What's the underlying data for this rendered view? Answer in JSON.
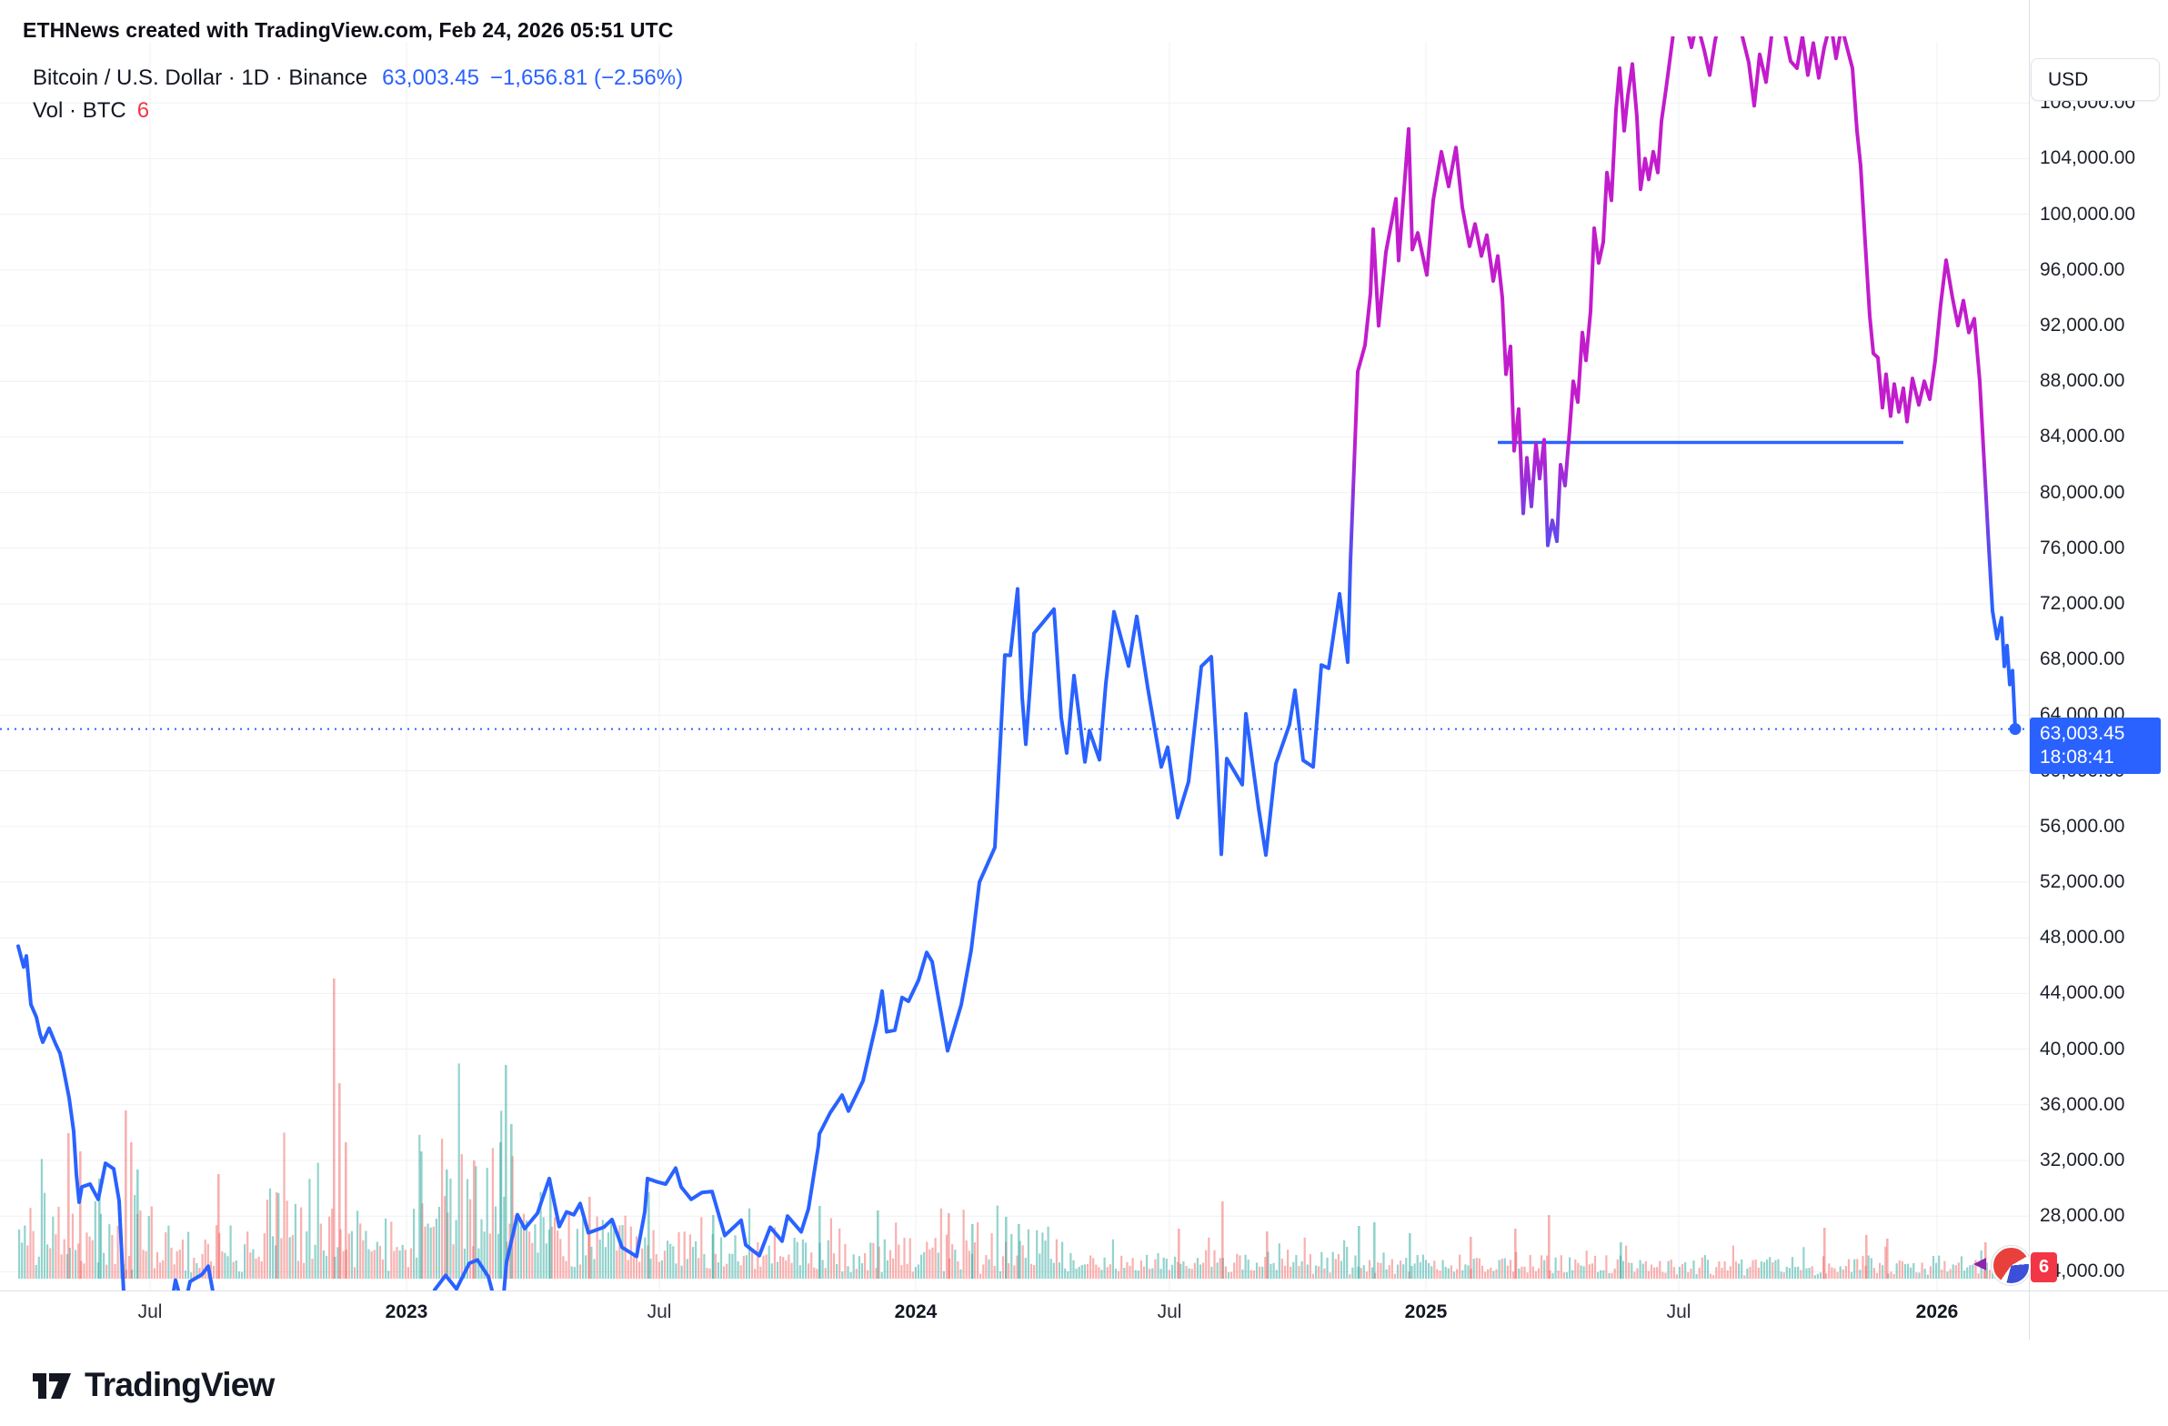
{
  "header": {
    "title": "ETHNews created with TradingView.com, Feb 24, 2026 05:51 UTC"
  },
  "legend": {
    "symbol": "Bitcoin / U.S. Dollar · 1D · Binance",
    "price": "63,003.45",
    "change": "−1,656.81 (−2.56%)",
    "vol_label": "Vol · BTC",
    "vol_value": "6"
  },
  "axis": {
    "currency": "USD"
  },
  "price_marker": {
    "price": "63,003.45",
    "countdown": "18:08:41"
  },
  "volume_marker": {
    "value": "6"
  },
  "footer": {
    "brand": "TradingView"
  },
  "chart_data": {
    "type": "line",
    "symbol": "BTCUSD",
    "interval": "1D",
    "exchange": "Binance",
    "last_price": 63003.45,
    "change": -1656.81,
    "change_pct": -2.56,
    "colors": {
      "low": "#2962FF",
      "high": "#C21CCC",
      "grid": "#f0f1f4",
      "vol_up": "rgba(42,167,155,0.5)",
      "vol_down": "rgba(239,83,80,0.45)",
      "accent": "#2962FF",
      "red": "#F23645"
    },
    "y_axis": {
      "visible_min": 24000,
      "visible_max": 104000,
      "tick_step": 4000
    },
    "price_ticks": [
      {
        "p": 108000,
        "label": "108,000.00"
      },
      {
        "p": 104000,
        "label": "104,000.00"
      },
      {
        "p": 100000,
        "label": "100,000.00"
      },
      {
        "p": 96000,
        "label": "96,000.00"
      },
      {
        "p": 92000,
        "label": "92,000.00"
      },
      {
        "p": 88000,
        "label": "88,000.00"
      },
      {
        "p": 84000,
        "label": "84,000.00"
      },
      {
        "p": 80000,
        "label": "80,000.00"
      },
      {
        "p": 76000,
        "label": "76,000.00"
      },
      {
        "p": 72000,
        "label": "72,000.00"
      },
      {
        "p": 68000,
        "label": "68,000.00"
      },
      {
        "p": 64000,
        "label": "64,000.00"
      },
      {
        "p": 60000,
        "label": "60,000.00"
      },
      {
        "p": 56000,
        "label": "56,000.00"
      },
      {
        "p": 52000,
        "label": "52,000.00"
      },
      {
        "p": 48000,
        "label": "48,000.00"
      },
      {
        "p": 44000,
        "label": "44,000.00"
      },
      {
        "p": 40000,
        "label": "40,000.00"
      },
      {
        "p": 36000,
        "label": "36,000.00"
      },
      {
        "p": 32000,
        "label": "32,000.00"
      },
      {
        "p": 28000,
        "label": "28,000.00"
      },
      {
        "p": 24000,
        "label": "24,000.00"
      }
    ],
    "time_ticks": [
      {
        "x": 165,
        "label": "Jul"
      },
      {
        "x": 447,
        "label": "2023",
        "major": true
      },
      {
        "x": 725,
        "label": "Jul"
      },
      {
        "x": 1007,
        "label": "2024",
        "major": true
      },
      {
        "x": 1286,
        "label": "Jul"
      },
      {
        "x": 1568,
        "label": "2025",
        "major": true
      },
      {
        "x": 1846,
        "label": "Jul"
      },
      {
        "x": 2130,
        "label": "2026",
        "major": true
      }
    ],
    "trendline": {
      "price": 83600,
      "x0": 1647,
      "x1": 2093
    },
    "last_point": {
      "x": 2216,
      "price": 63003.45
    },
    "series": [
      [
        20,
        47400
      ],
      [
        26,
        45900
      ],
      [
        29,
        46700
      ],
      [
        34,
        43200
      ],
      [
        40,
        42300
      ],
      [
        44,
        41100
      ],
      [
        47,
        40500
      ],
      [
        54,
        41500
      ],
      [
        61,
        40400
      ],
      [
        66,
        39700
      ],
      [
        70,
        38500
      ],
      [
        76,
        36500
      ],
      [
        81,
        34100
      ],
      [
        84,
        31000
      ],
      [
        87,
        29000
      ],
      [
        90,
        30100
      ],
      [
        99,
        30300
      ],
      [
        108,
        29200
      ],
      [
        116,
        31800
      ],
      [
        125,
        31400
      ],
      [
        131,
        29100
      ],
      [
        136,
        22500
      ],
      [
        139,
        20400
      ],
      [
        143,
        17700
      ],
      [
        148,
        20700
      ],
      [
        156,
        21250
      ],
      [
        162,
        19900
      ],
      [
        168,
        19300
      ],
      [
        175,
        21600
      ],
      [
        182,
        19300
      ],
      [
        193,
        23400
      ],
      [
        202,
        21250
      ],
      [
        209,
        23300
      ],
      [
        222,
        23800
      ],
      [
        229,
        24400
      ],
      [
        239,
        20800
      ],
      [
        251,
        20000
      ],
      [
        266,
        18800
      ],
      [
        276,
        22400
      ],
      [
        285,
        19500
      ],
      [
        289,
        18500
      ],
      [
        303,
        19400
      ],
      [
        309,
        20300
      ],
      [
        323,
        19100
      ],
      [
        334,
        19050
      ],
      [
        343,
        20700
      ],
      [
        357,
        21150
      ],
      [
        361,
        20600
      ],
      [
        364,
        15900
      ],
      [
        372,
        16600
      ],
      [
        383,
        15780
      ],
      [
        396,
        17150
      ],
      [
        416,
        17780
      ],
      [
        426,
        16440
      ],
      [
        443,
        16600
      ],
      [
        456,
        16950
      ],
      [
        467,
        19930
      ],
      [
        478,
        22700
      ],
      [
        490,
        23740
      ],
      [
        502,
        22760
      ],
      [
        516,
        24600
      ],
      [
        525,
        24850
      ],
      [
        537,
        23650
      ],
      [
        551,
        20200
      ],
      [
        557,
        24700
      ],
      [
        569,
        28100
      ],
      [
        577,
        27100
      ],
      [
        591,
        28200
      ],
      [
        604,
        30700
      ],
      [
        615,
        27250
      ],
      [
        623,
        28300
      ],
      [
        631,
        28100
      ],
      [
        638,
        28900
      ],
      [
        647,
        26800
      ],
      [
        664,
        27200
      ],
      [
        673,
        27750
      ],
      [
        684,
        25750
      ],
      [
        700,
        25100
      ],
      [
        709,
        28300
      ],
      [
        712,
        30700
      ],
      [
        723,
        30450
      ],
      [
        732,
        30300
      ],
      [
        743,
        31450
      ],
      [
        749,
        30100
      ],
      [
        760,
        29200
      ],
      [
        772,
        29700
      ],
      [
        783,
        29770
      ],
      [
        797,
        26600
      ],
      [
        815,
        27700
      ],
      [
        820,
        25930
      ],
      [
        835,
        25160
      ],
      [
        847,
        27200
      ],
      [
        860,
        26200
      ],
      [
        866,
        28000
      ],
      [
        881,
        26870
      ],
      [
        889,
        28520
      ],
      [
        900,
        33080
      ],
      [
        901,
        33900
      ],
      [
        913,
        35440
      ],
      [
        926,
        36700
      ],
      [
        933,
        35550
      ],
      [
        949,
        37720
      ],
      [
        964,
        41990
      ],
      [
        970,
        44170
      ],
      [
        975,
        41240
      ],
      [
        984,
        41360
      ],
      [
        992,
        43710
      ],
      [
        999,
        43440
      ],
      [
        1010,
        44950
      ],
      [
        1019,
        46950
      ],
      [
        1025,
        46290
      ],
      [
        1042,
        39880
      ],
      [
        1057,
        43190
      ],
      [
        1068,
        47130
      ],
      [
        1077,
        52000
      ],
      [
        1094,
        54500
      ],
      [
        1105,
        68330
      ],
      [
        1111,
        68300
      ],
      [
        1119,
        73080
      ],
      [
        1124,
        65300
      ],
      [
        1128,
        61910
      ],
      [
        1137,
        69880
      ],
      [
        1159,
        71620
      ],
      [
        1167,
        63840
      ],
      [
        1173,
        61280
      ],
      [
        1181,
        66840
      ],
      [
        1193,
        60640
      ],
      [
        1198,
        62890
      ],
      [
        1209,
        60790
      ],
      [
        1216,
        66270
      ],
      [
        1225,
        71440
      ],
      [
        1241,
        67530
      ],
      [
        1250,
        71100
      ],
      [
        1262,
        66010
      ],
      [
        1277,
        60280
      ],
      [
        1284,
        61700
      ],
      [
        1295,
        56640
      ],
      [
        1307,
        59230
      ],
      [
        1321,
        67500
      ],
      [
        1332,
        68200
      ],
      [
        1338,
        61400
      ],
      [
        1343,
        54000
      ],
      [
        1349,
        60880
      ],
      [
        1366,
        59000
      ],
      [
        1370,
        64100
      ],
      [
        1384,
        57300
      ],
      [
        1392,
        53950
      ],
      [
        1403,
        60500
      ],
      [
        1418,
        63330
      ],
      [
        1424,
        65790
      ],
      [
        1433,
        60750
      ],
      [
        1444,
        60280
      ],
      [
        1453,
        67610
      ],
      [
        1461,
        67370
      ],
      [
        1473,
        72720
      ],
      [
        1482,
        67810
      ],
      [
        1485,
        75060
      ],
      [
        1493,
        88700
      ],
      [
        1501,
        90590
      ],
      [
        1507,
        94290
      ],
      [
        1510,
        98930
      ],
      [
        1516,
        91980
      ],
      [
        1524,
        97280
      ],
      [
        1535,
        101110
      ],
      [
        1538,
        96670
      ],
      [
        1549,
        106140
      ],
      [
        1553,
        97460
      ],
      [
        1559,
        98660
      ],
      [
        1569,
        95640
      ],
      [
        1576,
        101000
      ],
      [
        1585,
        104500
      ],
      [
        1593,
        102000
      ],
      [
        1601,
        104800
      ],
      [
        1608,
        100500
      ],
      [
        1616,
        97700
      ],
      [
        1622,
        99300
      ],
      [
        1629,
        97000
      ],
      [
        1635,
        98500
      ],
      [
        1642,
        95200
      ],
      [
        1647,
        97000
      ],
      [
        1652,
        94000
      ],
      [
        1656,
        88500
      ],
      [
        1661,
        90500
      ],
      [
        1665,
        83000
      ],
      [
        1670,
        86000
      ],
      [
        1675,
        78500
      ],
      [
        1679,
        82500
      ],
      [
        1684,
        79000
      ],
      [
        1689,
        83500
      ],
      [
        1693,
        81000
      ],
      [
        1698,
        83800
      ],
      [
        1702,
        76200
      ],
      [
        1707,
        78000
      ],
      [
        1712,
        76500
      ],
      [
        1716,
        82000
      ],
      [
        1721,
        80500
      ],
      [
        1726,
        84500
      ],
      [
        1730,
        88000
      ],
      [
        1735,
        86500
      ],
      [
        1740,
        91500
      ],
      [
        1744,
        89500
      ],
      [
        1749,
        93000
      ],
      [
        1753,
        99000
      ],
      [
        1758,
        96500
      ],
      [
        1763,
        98000
      ],
      [
        1767,
        103000
      ],
      [
        1772,
        101000
      ],
      [
        1777,
        107500
      ],
      [
        1781,
        110500
      ],
      [
        1786,
        106000
      ],
      [
        1790,
        108500
      ],
      [
        1795,
        110800
      ],
      [
        1800,
        107000
      ],
      [
        1804,
        101800
      ],
      [
        1809,
        104000
      ],
      [
        1813,
        102500
      ],
      [
        1818,
        104500
      ],
      [
        1823,
        103000
      ],
      [
        1827,
        106700
      ],
      [
        1832,
        109000
      ],
      [
        1837,
        111500
      ],
      [
        1841,
        113500
      ],
      [
        1851,
        114500
      ],
      [
        1860,
        112000
      ],
      [
        1866,
        113800
      ],
      [
        1874,
        111800
      ],
      [
        1880,
        110000
      ],
      [
        1886,
        112500
      ],
      [
        1892,
        114200
      ],
      [
        1900,
        113000
      ],
      [
        1908,
        114800
      ],
      [
        1917,
        112500
      ],
      [
        1923,
        110900
      ],
      [
        1929,
        107800
      ],
      [
        1935,
        111500
      ],
      [
        1942,
        109500
      ],
      [
        1948,
        112800
      ],
      [
        1954,
        114500
      ],
      [
        1962,
        113200
      ],
      [
        1969,
        111000
      ],
      [
        1976,
        110500
      ],
      [
        1982,
        112800
      ],
      [
        1988,
        110000
      ],
      [
        1994,
        112300
      ],
      [
        2000,
        109800
      ],
      [
        2006,
        112000
      ],
      [
        2013,
        113800
      ],
      [
        2019,
        111200
      ],
      [
        2025,
        113500
      ],
      [
        2031,
        112000
      ],
      [
        2037,
        110500
      ],
      [
        2042,
        106000
      ],
      [
        2046,
        103500
      ],
      [
        2051,
        98000
      ],
      [
        2056,
        92700
      ],
      [
        2060,
        90000
      ],
      [
        2065,
        89700
      ],
      [
        2070,
        86100
      ],
      [
        2074,
        88500
      ],
      [
        2079,
        85500
      ],
      [
        2083,
        87800
      ],
      [
        2088,
        85800
      ],
      [
        2093,
        87500
      ],
      [
        2097,
        85100
      ],
      [
        2103,
        88200
      ],
      [
        2110,
        86300
      ],
      [
        2116,
        88000
      ],
      [
        2122,
        86700
      ],
      [
        2128,
        89500
      ],
      [
        2134,
        93500
      ],
      [
        2140,
        96700
      ],
      [
        2147,
        94000
      ],
      [
        2153,
        92000
      ],
      [
        2159,
        93800
      ],
      [
        2165,
        91500
      ],
      [
        2171,
        92500
      ],
      [
        2177,
        88000
      ],
      [
        2182,
        82000
      ],
      [
        2187,
        76000
      ],
      [
        2191,
        71500
      ],
      [
        2196,
        69500
      ],
      [
        2201,
        71000
      ],
      [
        2204,
        67500
      ],
      [
        2207,
        69000
      ],
      [
        2210,
        66200
      ],
      [
        2213,
        67200
      ],
      [
        2216,
        63003.45
      ]
    ],
    "volume_clusters": [
      [
        20,
        170,
        15,
        95
      ],
      [
        170,
        290,
        12,
        60
      ],
      [
        290,
        330,
        20,
        110
      ],
      [
        330,
        460,
        15,
        85
      ],
      [
        460,
        565,
        30,
        160
      ],
      [
        565,
        720,
        18,
        75
      ],
      [
        720,
        870,
        12,
        55
      ],
      [
        870,
        1010,
        10,
        45
      ],
      [
        1010,
        1170,
        10,
        55
      ],
      [
        1170,
        1570,
        8,
        32
      ],
      [
        1570,
        2130,
        6,
        26
      ],
      [
        2130,
        2226,
        8,
        30
      ]
    ],
    "volume_spikes": [
      [
        74,
        160,
        "d"
      ],
      [
        87,
        140,
        "d"
      ],
      [
        108,
        110,
        "u"
      ],
      [
        137,
        185,
        "d"
      ],
      [
        143,
        150,
        "d"
      ],
      [
        150,
        120,
        "u"
      ],
      [
        239,
        115,
        "d"
      ],
      [
        303,
        95,
        "d"
      ],
      [
        366,
        330,
        "d"
      ],
      [
        372,
        215,
        "d"
      ],
      [
        379,
        150,
        "d"
      ],
      [
        462,
        140,
        "u"
      ],
      [
        490,
        120,
        "u"
      ],
      [
        520,
        130,
        "d"
      ],
      [
        549,
        150,
        "u"
      ],
      [
        555,
        235,
        "u"
      ],
      [
        561,
        170,
        "u"
      ],
      [
        604,
        110,
        "u"
      ],
      [
        647,
        90,
        "d"
      ],
      [
        712,
        95,
        "u"
      ],
      [
        783,
        70,
        "u"
      ],
      [
        900,
        80,
        "u"
      ],
      [
        964,
        75,
        "u"
      ],
      [
        1042,
        72,
        "d"
      ],
      [
        1068,
        60,
        "u"
      ],
      [
        1105,
        68,
        "u"
      ],
      [
        1119,
        60,
        "u"
      ],
      [
        1295,
        55,
        "d"
      ],
      [
        1343,
        85,
        "d"
      ],
      [
        1392,
        52,
        "d"
      ],
      [
        1493,
        58,
        "u"
      ],
      [
        1510,
        62,
        "u"
      ],
      [
        1549,
        50,
        "u"
      ],
      [
        1616,
        46,
        "d"
      ],
      [
        1665,
        55,
        "d"
      ],
      [
        1702,
        70,
        "d"
      ],
      [
        1781,
        40,
        "u"
      ],
      [
        2005,
        56,
        "d"
      ],
      [
        2051,
        48,
        "d"
      ],
      [
        2074,
        44,
        "d"
      ],
      [
        2182,
        40,
        "d"
      ],
      [
        2204,
        30,
        "d"
      ]
    ]
  }
}
